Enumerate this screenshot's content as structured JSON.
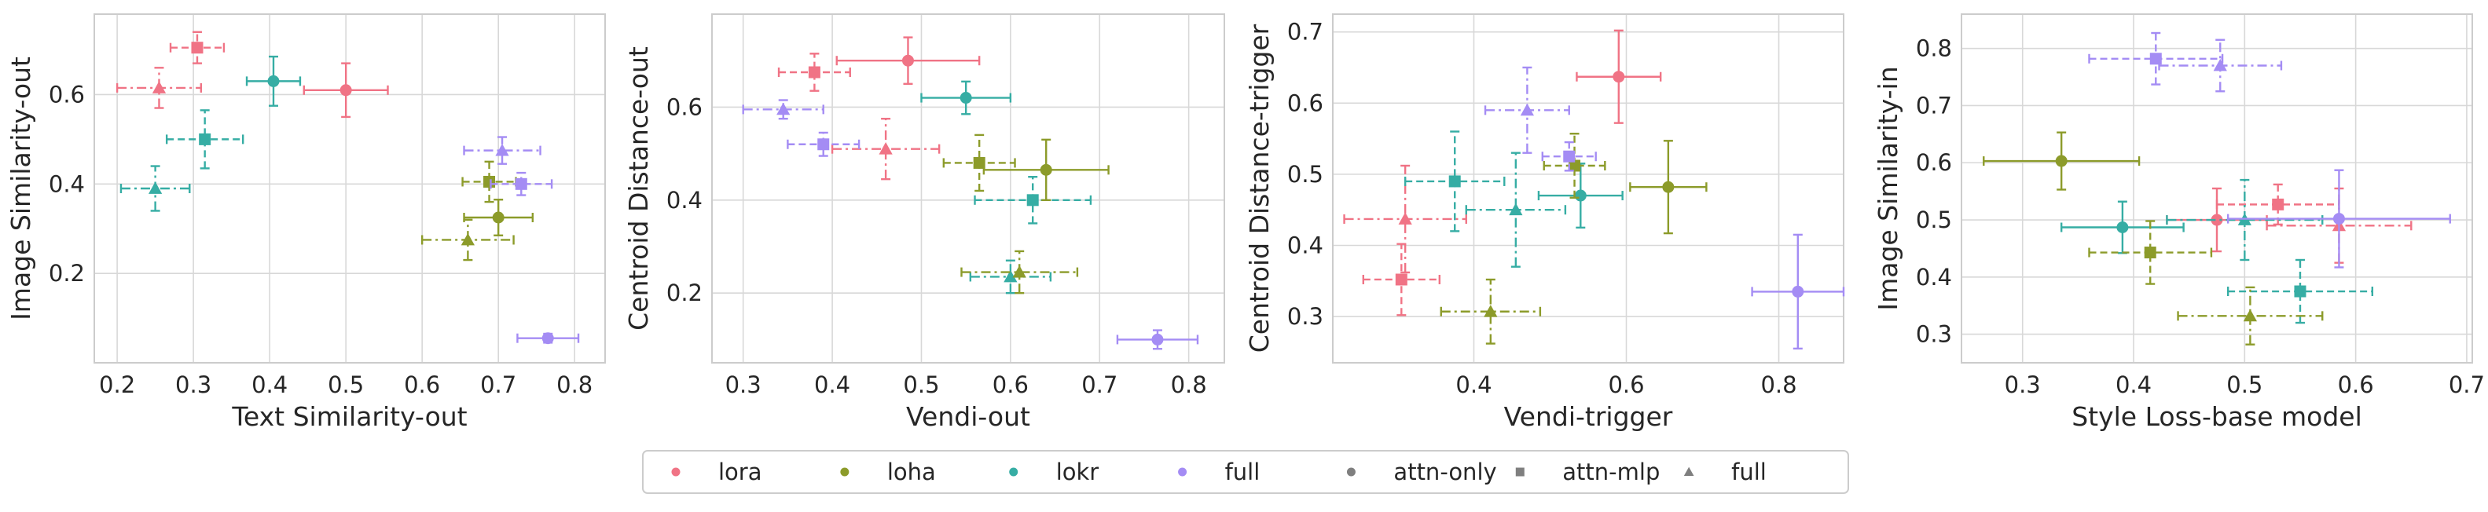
{
  "colors": {
    "lora": "#f07385",
    "loha": "#8c9b2a",
    "lokr": "#36ada4",
    "full": "#a48cf4",
    "neutral": "#7f7f7f",
    "grid": "#d8d8d8",
    "text": "#262626"
  },
  "legend": {
    "placement": "bottom-center",
    "entries": [
      {
        "label": "lora",
        "color_key": "lora",
        "marker": "circle"
      },
      {
        "label": "loha",
        "color_key": "loha",
        "marker": "circle"
      },
      {
        "label": "lokr",
        "color_key": "lokr",
        "marker": "circle"
      },
      {
        "label": "full",
        "color_key": "full",
        "marker": "circle"
      },
      {
        "label": "attn-only",
        "color_key": "neutral",
        "marker": "circle"
      },
      {
        "label": "attn-mlp",
        "color_key": "neutral",
        "marker": "square"
      },
      {
        "label": "full",
        "color_key": "neutral",
        "marker": "triangle"
      }
    ]
  },
  "chart_data": [
    {
      "type": "scatter",
      "xlabel": "Text Similarity-out",
      "ylabel": "Image Similarity-out",
      "xlim": [
        0.17,
        0.84
      ],
      "ylim": [
        0.0,
        0.78
      ],
      "xticks": [
        "0.2",
        "0.3",
        "0.4",
        "0.5",
        "0.6",
        "0.7",
        "0.8"
      ],
      "yticks": [
        "0.2",
        "0.4",
        "0.6"
      ],
      "grid": true,
      "points": [
        {
          "algo": "lora",
          "cfg": "attn-only",
          "x": 0.5,
          "y": 0.61,
          "xerr": 0.055,
          "yerr": 0.06
        },
        {
          "algo": "lora",
          "cfg": "attn-mlp",
          "x": 0.305,
          "y": 0.705,
          "xerr": 0.035,
          "yerr": 0.035
        },
        {
          "algo": "lora",
          "cfg": "full",
          "x": 0.255,
          "y": 0.615,
          "xerr": 0.055,
          "yerr": 0.045
        },
        {
          "algo": "lokr",
          "cfg": "attn-only",
          "x": 0.405,
          "y": 0.63,
          "xerr": 0.035,
          "yerr": 0.055
        },
        {
          "algo": "lokr",
          "cfg": "attn-mlp",
          "x": 0.315,
          "y": 0.5,
          "xerr": 0.05,
          "yerr": 0.065
        },
        {
          "algo": "lokr",
          "cfg": "full",
          "x": 0.25,
          "y": 0.39,
          "xerr": 0.045,
          "yerr": 0.05
        },
        {
          "algo": "loha",
          "cfg": "attn-only",
          "x": 0.7,
          "y": 0.325,
          "xerr": 0.045,
          "yerr": 0.04
        },
        {
          "algo": "loha",
          "cfg": "attn-mlp",
          "x": 0.688,
          "y": 0.405,
          "xerr": 0.035,
          "yerr": 0.045
        },
        {
          "algo": "loha",
          "cfg": "full",
          "x": 0.66,
          "y": 0.275,
          "xerr": 0.06,
          "yerr": 0.045
        },
        {
          "algo": "full",
          "cfg": "attn-only",
          "x": 0.765,
          "y": 0.055,
          "xerr": 0.04,
          "yerr": 0.01
        },
        {
          "algo": "full",
          "cfg": "attn-mlp",
          "x": 0.73,
          "y": 0.4,
          "xerr": 0.04,
          "yerr": 0.025
        },
        {
          "algo": "full",
          "cfg": "full",
          "x": 0.705,
          "y": 0.475,
          "xerr": 0.05,
          "yerr": 0.03
        }
      ]
    },
    {
      "type": "scatter",
      "xlabel": "Vendi-out",
      "ylabel": "Centroid Distance-out",
      "xlim": [
        0.265,
        0.84
      ],
      "ylim": [
        0.05,
        0.8
      ],
      "xticks": [
        "0.3",
        "0.4",
        "0.5",
        "0.6",
        "0.7",
        "0.8"
      ],
      "yticks": [
        "0.2",
        "0.4",
        "0.6"
      ],
      "grid": true,
      "points": [
        {
          "algo": "lora",
          "cfg": "attn-only",
          "x": 0.485,
          "y": 0.7,
          "xerr": 0.08,
          "yerr": 0.05
        },
        {
          "algo": "lora",
          "cfg": "attn-mlp",
          "x": 0.38,
          "y": 0.675,
          "xerr": 0.04,
          "yerr": 0.04
        },
        {
          "algo": "lora",
          "cfg": "full",
          "x": 0.46,
          "y": 0.51,
          "xerr": 0.06,
          "yerr": 0.065
        },
        {
          "algo": "lokr",
          "cfg": "attn-only",
          "x": 0.55,
          "y": 0.62,
          "xerr": 0.05,
          "yerr": 0.035
        },
        {
          "algo": "lokr",
          "cfg": "attn-mlp",
          "x": 0.625,
          "y": 0.4,
          "xerr": 0.065,
          "yerr": 0.05
        },
        {
          "algo": "lokr",
          "cfg": "full",
          "x": 0.6,
          "y": 0.235,
          "xerr": 0.045,
          "yerr": 0.035
        },
        {
          "algo": "loha",
          "cfg": "attn-only",
          "x": 0.64,
          "y": 0.465,
          "xerr": 0.07,
          "yerr": 0.065
        },
        {
          "algo": "loha",
          "cfg": "attn-mlp",
          "x": 0.565,
          "y": 0.48,
          "xerr": 0.04,
          "yerr": 0.06
        },
        {
          "algo": "loha",
          "cfg": "full",
          "x": 0.61,
          "y": 0.245,
          "xerr": 0.065,
          "yerr": 0.045
        },
        {
          "algo": "full",
          "cfg": "attn-only",
          "x": 0.765,
          "y": 0.1,
          "xerr": 0.045,
          "yerr": 0.02
        },
        {
          "algo": "full",
          "cfg": "attn-mlp",
          "x": 0.39,
          "y": 0.52,
          "xerr": 0.04,
          "yerr": 0.025
        },
        {
          "algo": "full",
          "cfg": "full",
          "x": 0.345,
          "y": 0.595,
          "xerr": 0.045,
          "yerr": 0.02
        }
      ]
    },
    {
      "type": "scatter",
      "xlabel": "Vendi-trigger",
      "ylabel": "Centroid Distance-trigger",
      "xlim": [
        0.215,
        0.885
      ],
      "ylim": [
        0.235,
        0.725
      ],
      "xticks": [
        "0.4",
        "0.6",
        "0.8"
      ],
      "yticks": [
        "0.3",
        "0.4",
        "0.5",
        "0.6",
        "0.7"
      ],
      "grid": true,
      "points": [
        {
          "algo": "lora",
          "cfg": "attn-only",
          "x": 0.59,
          "y": 0.637,
          "xerr": 0.055,
          "yerr": 0.065
        },
        {
          "algo": "lora",
          "cfg": "attn-mlp",
          "x": 0.305,
          "y": 0.352,
          "xerr": 0.05,
          "yerr": 0.05
        },
        {
          "algo": "lora",
          "cfg": "full",
          "x": 0.31,
          "y": 0.437,
          "xerr": 0.08,
          "yerr": 0.075
        },
        {
          "algo": "lokr",
          "cfg": "attn-only",
          "x": 0.54,
          "y": 0.47,
          "xerr": 0.055,
          "yerr": 0.045
        },
        {
          "algo": "lokr",
          "cfg": "attn-mlp",
          "x": 0.375,
          "y": 0.49,
          "xerr": 0.065,
          "yerr": 0.07
        },
        {
          "algo": "lokr",
          "cfg": "full",
          "x": 0.455,
          "y": 0.45,
          "xerr": 0.065,
          "yerr": 0.08
        },
        {
          "algo": "loha",
          "cfg": "attn-only",
          "x": 0.655,
          "y": 0.482,
          "xerr": 0.05,
          "yerr": 0.065
        },
        {
          "algo": "loha",
          "cfg": "attn-mlp",
          "x": 0.532,
          "y": 0.512,
          "xerr": 0.04,
          "yerr": 0.045
        },
        {
          "algo": "loha",
          "cfg": "full",
          "x": 0.422,
          "y": 0.307,
          "xerr": 0.065,
          "yerr": 0.045
        },
        {
          "algo": "full",
          "cfg": "attn-only",
          "x": 0.825,
          "y": 0.335,
          "xerr": 0.06,
          "yerr": 0.08
        },
        {
          "algo": "full",
          "cfg": "attn-mlp",
          "x": 0.525,
          "y": 0.525,
          "xerr": 0.035,
          "yerr": 0.02
        },
        {
          "algo": "full",
          "cfg": "full",
          "x": 0.47,
          "y": 0.59,
          "xerr": 0.055,
          "yerr": 0.06
        }
      ]
    },
    {
      "type": "scatter",
      "xlabel": "Style Loss-base model",
      "ylabel": "Image Similarity-in",
      "xlim": [
        0.245,
        0.705
      ],
      "ylim": [
        0.25,
        0.86
      ],
      "xticks": [
        "0.3",
        "0.4",
        "0.5",
        "0.6",
        "0.7"
      ],
      "yticks": [
        "0.3",
        "0.4",
        "0.5",
        "0.6",
        "0.7",
        "0.8"
      ],
      "grid": true,
      "points": [
        {
          "algo": "lora",
          "cfg": "attn-only",
          "x": 0.475,
          "y": 0.5,
          "xerr": 0.045,
          "yerr": 0.055
        },
        {
          "algo": "lora",
          "cfg": "attn-mlp",
          "x": 0.53,
          "y": 0.527,
          "xerr": 0.055,
          "yerr": 0.035
        },
        {
          "algo": "lora",
          "cfg": "full",
          "x": 0.585,
          "y": 0.49,
          "xerr": 0.065,
          "yerr": 0.065
        },
        {
          "algo": "lokr",
          "cfg": "attn-only",
          "x": 0.39,
          "y": 0.487,
          "xerr": 0.055,
          "yerr": 0.045
        },
        {
          "algo": "lokr",
          "cfg": "attn-mlp",
          "x": 0.55,
          "y": 0.375,
          "xerr": 0.065,
          "yerr": 0.055
        },
        {
          "algo": "lokr",
          "cfg": "full",
          "x": 0.5,
          "y": 0.5,
          "xerr": 0.07,
          "yerr": 0.07
        },
        {
          "algo": "loha",
          "cfg": "attn-only",
          "x": 0.335,
          "y": 0.603,
          "xerr": 0.07,
          "yerr": 0.05
        },
        {
          "algo": "loha",
          "cfg": "attn-mlp",
          "x": 0.415,
          "y": 0.443,
          "xerr": 0.055,
          "yerr": 0.055
        },
        {
          "algo": "loha",
          "cfg": "full",
          "x": 0.505,
          "y": 0.332,
          "xerr": 0.065,
          "yerr": 0.05
        },
        {
          "algo": "full",
          "cfg": "attn-only",
          "x": 0.585,
          "y": 0.502,
          "xerr": 0.1,
          "yerr": 0.085
        },
        {
          "algo": "full",
          "cfg": "attn-mlp",
          "x": 0.42,
          "y": 0.782,
          "xerr": 0.06,
          "yerr": 0.045
        },
        {
          "algo": "full",
          "cfg": "full",
          "x": 0.478,
          "y": 0.77,
          "xerr": 0.055,
          "yerr": 0.045
        }
      ]
    }
  ]
}
